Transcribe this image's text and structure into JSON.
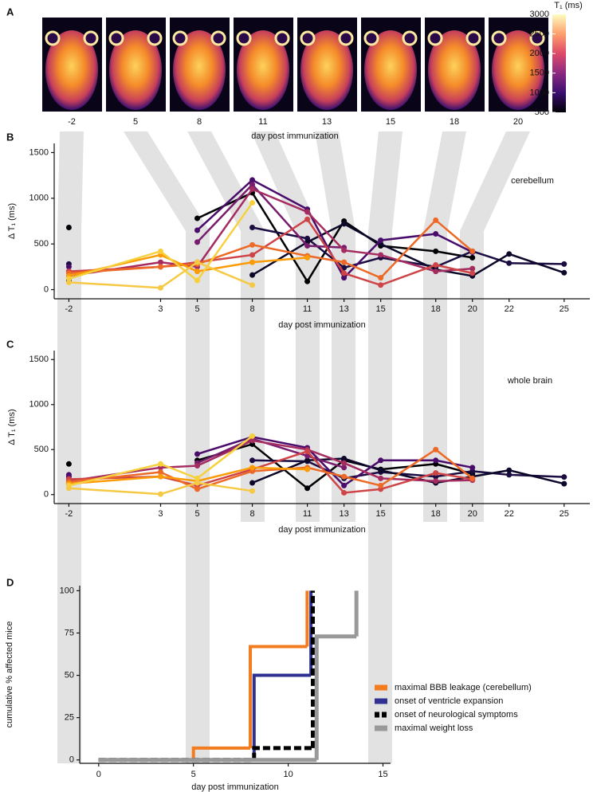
{
  "chart_data": [
    {
      "type": "image-strip",
      "panel": "A",
      "categories": [
        "-2",
        "5",
        "8",
        "11",
        "13",
        "15",
        "18",
        "20"
      ],
      "xlabel": "day post immunization",
      "colorbar": {
        "title": "T₁ (ms)",
        "lim": [
          500,
          3000
        ],
        "ticks": [
          500,
          1000,
          1500,
          2000,
          2500,
          3000
        ],
        "colors": [
          "#000004",
          "#3b0f70",
          "#8c2981",
          "#de4968",
          "#fe9f6d",
          "#fcfdbf"
        ]
      }
    },
    {
      "type": "line",
      "panel": "B",
      "annotation": "cerebellum",
      "xlabel": "day post immunization",
      "ylabel": "Δ T₁ (ms)",
      "x": [
        -2,
        3,
        5,
        8,
        11,
        13,
        15,
        18,
        20,
        22,
        25
      ],
      "xlim": [
        -2.8,
        26.4
      ],
      "xticks": [
        -2,
        3,
        5,
        8,
        11,
        13,
        15,
        18,
        20,
        22,
        25
      ],
      "ylim": [
        -100,
        1600
      ],
      "yticks": [
        0,
        500,
        1000,
        1500
      ],
      "series": [
        {
          "color": "#000004",
          "values": [
            680,
            null,
            780,
            1060,
            90,
            750,
            480,
            420,
            350,
            null,
            null
          ]
        },
        {
          "color": "#1b0c41",
          "values": [
            280,
            null,
            null,
            680,
            560,
            240,
            350,
            250,
            420,
            290,
            280
          ]
        },
        {
          "color": "#0d0829",
          "values": [
            100,
            null,
            null,
            160,
            520,
            720,
            500,
            220,
            150,
            390,
            185
          ]
        },
        {
          "color": "#4a0c6b",
          "values": [
            250,
            null,
            650,
            1200,
            880,
            130,
            540,
            610,
            410,
            null,
            null
          ]
        },
        {
          "color": "#781c6d",
          "values": [
            200,
            null,
            520,
            1150,
            480,
            460,
            null,
            null,
            null,
            null,
            null
          ]
        },
        {
          "color": "#a52c60",
          "values": [
            150,
            300,
            250,
            1100,
            850,
            430,
            380,
            200,
            230,
            null,
            null
          ]
        },
        {
          "color": "#cf4446",
          "values": [
            200,
            250,
            300,
            380,
            770,
            180,
            50,
            270,
            180,
            null,
            null
          ]
        },
        {
          "color": "#ed6925",
          "values": [
            180,
            250,
            280,
            490,
            370,
            300,
            130,
            760,
            420,
            null,
            null
          ]
        },
        {
          "color": "#fb9b06",
          "values": [
            150,
            380,
            200,
            300,
            350,
            null,
            null,
            null,
            null,
            null,
            null
          ]
        },
        {
          "color": "#f7d13d",
          "values": [
            120,
            420,
            100,
            950,
            null,
            null,
            null,
            null,
            null,
            null,
            null
          ]
        },
        {
          "color": "#f6c945",
          "values": [
            80,
            20,
            300,
            50,
            null,
            null,
            null,
            null,
            null,
            null,
            null
          ]
        }
      ]
    },
    {
      "type": "line",
      "panel": "C",
      "annotation": "whole brain",
      "xlabel": "day post immunization",
      "ylabel": "Δ T₁ (ms)",
      "x": [
        -2,
        3,
        5,
        8,
        11,
        13,
        15,
        18,
        20,
        22,
        25
      ],
      "xlim": [
        -2.8,
        26.4
      ],
      "xticks": [
        -2,
        3,
        5,
        8,
        11,
        13,
        15,
        18,
        20,
        22,
        25
      ],
      "ylim": [
        -100,
        1600
      ],
      "yticks": [
        0,
        500,
        1000,
        1500
      ],
      "series": [
        {
          "color": "#000004",
          "values": [
            340,
            null,
            380,
            560,
            70,
            380,
            280,
            340,
            230,
            null,
            null
          ]
        },
        {
          "color": "#1b0c41",
          "values": [
            200,
            null,
            null,
            380,
            370,
            180,
            250,
            200,
            260,
            220,
            195
          ]
        },
        {
          "color": "#0d0829",
          "values": [
            120,
            null,
            null,
            130,
            380,
            400,
            270,
            130,
            200,
            270,
            120
          ]
        },
        {
          "color": "#4a0c6b",
          "values": [
            220,
            null,
            450,
            640,
            520,
            100,
            380,
            380,
            300,
            null,
            null
          ]
        },
        {
          "color": "#781c6d",
          "values": [
            180,
            null,
            350,
            620,
            430,
            300,
            null,
            null,
            null,
            null,
            null
          ]
        },
        {
          "color": "#a52c60",
          "values": [
            150,
            300,
            320,
            600,
            500,
            350,
            180,
            150,
            160,
            null,
            null
          ]
        },
        {
          "color": "#cf4446",
          "values": [
            170,
            200,
            100,
            280,
            480,
            20,
            60,
            240,
            170,
            null,
            null
          ]
        },
        {
          "color": "#ed6925",
          "values": [
            140,
            250,
            60,
            260,
            300,
            200,
            100,
            500,
            180,
            null,
            null
          ]
        },
        {
          "color": "#fb9b06",
          "values": [
            120,
            200,
            150,
            300,
            280,
            null,
            null,
            null,
            null,
            null,
            null
          ]
        },
        {
          "color": "#f7d13d",
          "values": [
            100,
            340,
            180,
            650,
            null,
            null,
            null,
            null,
            null,
            null,
            null
          ]
        },
        {
          "color": "#f6c945",
          "values": [
            70,
            5,
            130,
            40,
            null,
            null,
            null,
            null,
            null,
            null,
            null
          ]
        }
      ]
    },
    {
      "type": "step",
      "panel": "D",
      "xlabel": "day post immunization",
      "ylabel": "cumulative % affected mice",
      "xlim": [
        -1,
        15.4
      ],
      "xticks": [
        0,
        5,
        10,
        15
      ],
      "ylim": [
        -2,
        103
      ],
      "yticks": [
        0,
        25,
        50,
        75,
        100
      ],
      "legend": "lower right",
      "series": [
        {
          "name": "maximal BBB leakage (cerebellum)",
          "color": "#f47c20",
          "x": [
            0,
            5,
            8,
            11
          ],
          "values": [
            0,
            7,
            67,
            100
          ]
        },
        {
          "name": "onset of ventricle expansion",
          "color": "#2e3192",
          "x": [
            0,
            8.2,
            11.2
          ],
          "values": [
            0,
            50,
            100
          ]
        },
        {
          "name": "onset of neurological symptoms",
          "color": "#000000",
          "dashed": true,
          "x": [
            0,
            8.2,
            11.3
          ],
          "values": [
            0,
            7,
            100
          ]
        },
        {
          "name": "maximal weight loss",
          "color": "#999999",
          "x": [
            0,
            11.5,
            13.6
          ],
          "values": [
            0,
            73,
            100
          ]
        }
      ]
    }
  ]
}
